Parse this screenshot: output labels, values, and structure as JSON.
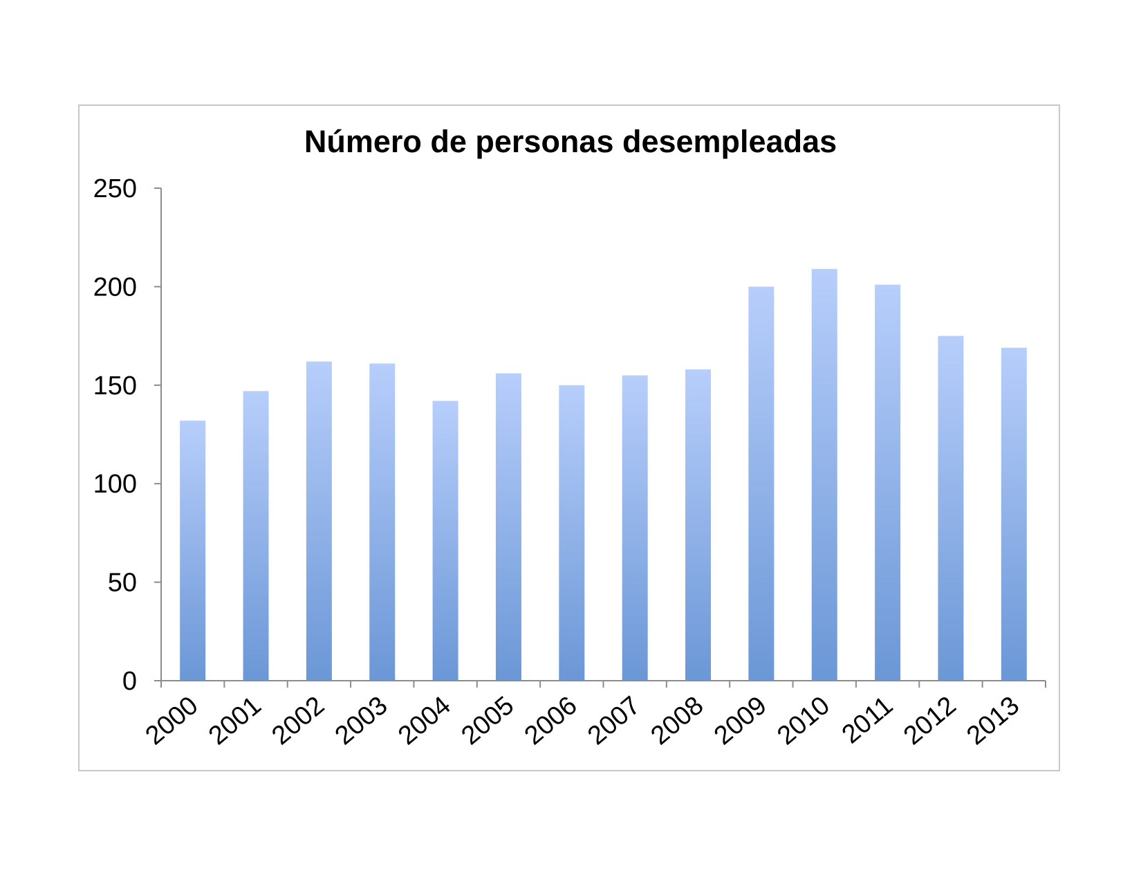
{
  "chart_data": {
    "type": "bar",
    "title": "Número de personas desempleadas",
    "xlabel": "",
    "ylabel": "",
    "categories": [
      "2000",
      "2001",
      "2002",
      "2003",
      "2004",
      "2005",
      "2006",
      "2007",
      "2008",
      "2009",
      "2010",
      "2011",
      "2012",
      "2013"
    ],
    "values": [
      132,
      147,
      162,
      161,
      142,
      156,
      150,
      155,
      158,
      200,
      209,
      201,
      175,
      169
    ],
    "ylim": [
      0,
      250
    ],
    "yticks": [
      "0",
      "50",
      "100",
      "150",
      "200",
      "250"
    ],
    "grid": false,
    "legend": "none",
    "colors": {
      "bar_top": "#b7cefb",
      "bar_bottom": "#6b97d6",
      "axis": "#8c8c8c",
      "frame": "#c8c8c8"
    }
  }
}
